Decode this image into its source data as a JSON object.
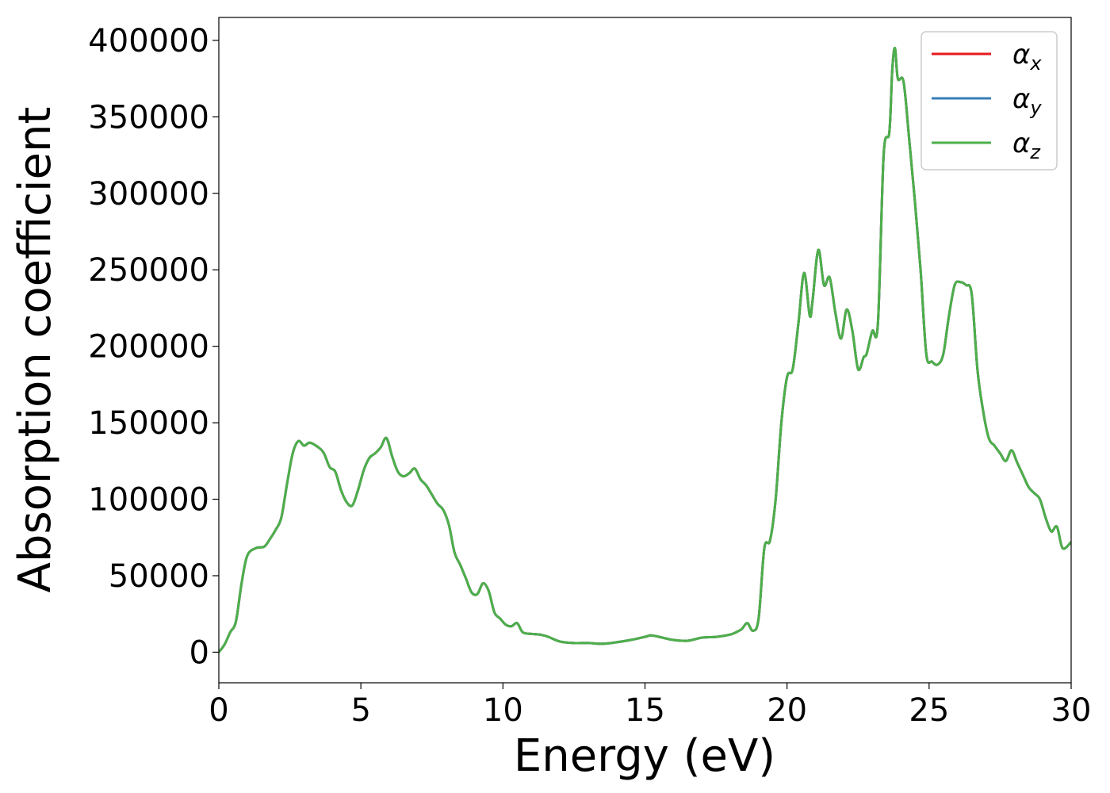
{
  "chart_data": {
    "type": "line",
    "xlabel": "Energy (eV)",
    "ylabel": "Absorption coefficient",
    "xlim": [
      0,
      30
    ],
    "ylim": [
      -20000,
      415000
    ],
    "xticks": [
      "0",
      "5",
      "10",
      "15",
      "20",
      "25",
      "30"
    ],
    "yticks": [
      "0",
      "50000",
      "100000",
      "150000",
      "200000",
      "250000",
      "300000",
      "350000",
      "400000"
    ],
    "grid": false,
    "legend_position": "top-right",
    "x": [
      0,
      0.2,
      0.4,
      0.6,
      0.8,
      1.0,
      1.3,
      1.6,
      1.8,
      2.0,
      2.2,
      2.4,
      2.6,
      2.8,
      3.0,
      3.2,
      3.5,
      3.7,
      3.9,
      4.1,
      4.3,
      4.5,
      4.7,
      4.9,
      5.1,
      5.3,
      5.5,
      5.7,
      5.9,
      6.1,
      6.3,
      6.5,
      6.7,
      6.9,
      7.1,
      7.3,
      7.5,
      7.7,
      7.9,
      8.1,
      8.3,
      8.5,
      8.7,
      8.9,
      9.1,
      9.3,
      9.5,
      9.7,
      9.9,
      10.1,
      10.3,
      10.5,
      10.7,
      11.0,
      11.3,
      11.6,
      12.0,
      12.5,
      13.0,
      13.5,
      14.0,
      14.5,
      15.0,
      15.2,
      15.5,
      16.0,
      16.5,
      17.0,
      17.5,
      18.0,
      18.2,
      18.4,
      18.6,
      18.8,
      19.0,
      19.2,
      19.4,
      19.6,
      19.8,
      20.0,
      20.2,
      20.4,
      20.6,
      20.8,
      20.9,
      21.1,
      21.3,
      21.5,
      21.7,
      21.9,
      22.1,
      22.3,
      22.5,
      22.7,
      22.8,
      23.0,
      23.2,
      23.4,
      23.6,
      23.7,
      23.8,
      23.9,
      24.1,
      24.3,
      24.5,
      24.7,
      24.9,
      25.1,
      25.3,
      25.5,
      25.7,
      25.9,
      26.1,
      26.3,
      26.5,
      26.7,
      26.9,
      27.1,
      27.3,
      27.5,
      27.7,
      27.9,
      28.1,
      28.3,
      28.5,
      28.7,
      28.9,
      29.1,
      29.3,
      29.5,
      29.7,
      30.0
    ],
    "series": [
      {
        "name": "α",
        "sub": "x",
        "color": "#e41a1c",
        "values": [
          0,
          5000,
          13000,
          20000,
          45000,
          63000,
          68000,
          69000,
          74000,
          80000,
          88000,
          110000,
          130000,
          138000,
          135000,
          137000,
          134000,
          130000,
          121000,
          118000,
          106000,
          98000,
          96000,
          106000,
          119000,
          127000,
          130000,
          134000,
          140000,
          128000,
          118000,
          115000,
          117000,
          120000,
          113000,
          109000,
          103000,
          97000,
          93000,
          83000,
          65000,
          57000,
          48000,
          39000,
          38000,
          45000,
          40000,
          26000,
          22000,
          18000,
          17000,
          19000,
          13000,
          12000,
          11500,
          10000,
          7000,
          6000,
          6000,
          5500,
          6500,
          8000,
          10000,
          11000,
          10000,
          8000,
          7500,
          9500,
          10000,
          11500,
          13000,
          15000,
          19000,
          14000,
          22000,
          68000,
          73000,
          100000,
          150000,
          180000,
          185000,
          215000,
          248000,
          220000,
          230000,
          263000,
          240000,
          245000,
          222000,
          205000,
          224000,
          210000,
          185000,
          193000,
          195000,
          210000,
          215000,
          325000,
          340000,
          380000,
          395000,
          375000,
          373000,
          335000,
          295000,
          250000,
          195000,
          190000,
          188000,
          195000,
          220000,
          240000,
          242000,
          240000,
          234000,
          185000,
          158000,
          140000,
          135000,
          130000,
          125000,
          132000,
          124000,
          116000,
          108000,
          104000,
          100000,
          88000,
          79000,
          82000,
          68000,
          72000
        ]
      },
      {
        "name": "α",
        "sub": "y",
        "color": "#377eb8",
        "values": [
          0,
          5000,
          13000,
          20000,
          45000,
          63000,
          68000,
          69000,
          74000,
          80000,
          88000,
          110000,
          130000,
          138000,
          135000,
          137000,
          134000,
          130000,
          121000,
          118000,
          106000,
          98000,
          96000,
          106000,
          119000,
          127000,
          130000,
          134000,
          140000,
          128000,
          118000,
          115000,
          117000,
          120000,
          113000,
          109000,
          103000,
          97000,
          93000,
          83000,
          65000,
          57000,
          48000,
          39000,
          38000,
          45000,
          40000,
          26000,
          22000,
          18000,
          17000,
          19000,
          13000,
          12000,
          11500,
          10000,
          7000,
          6000,
          6000,
          5500,
          6500,
          8000,
          10000,
          11000,
          10000,
          8000,
          7500,
          9500,
          10000,
          11500,
          13000,
          15000,
          19000,
          14000,
          22000,
          68000,
          73000,
          100000,
          150000,
          180000,
          185000,
          215000,
          248000,
          220000,
          230000,
          263000,
          240000,
          245000,
          222000,
          205000,
          224000,
          210000,
          185000,
          193000,
          195000,
          210000,
          215000,
          325000,
          340000,
          380000,
          395000,
          375000,
          373000,
          335000,
          295000,
          250000,
          195000,
          190000,
          188000,
          195000,
          220000,
          240000,
          242000,
          240000,
          234000,
          185000,
          158000,
          140000,
          135000,
          130000,
          125000,
          132000,
          124000,
          116000,
          108000,
          104000,
          100000,
          88000,
          79000,
          82000,
          68000,
          72000
        ]
      },
      {
        "name": "α",
        "sub": "z",
        "color": "#4daf4a",
        "values": [
          0,
          5000,
          13000,
          20000,
          45000,
          63000,
          68000,
          69000,
          74000,
          80000,
          88000,
          110000,
          130000,
          138000,
          135000,
          137000,
          134000,
          130000,
          121000,
          118000,
          106000,
          98000,
          96000,
          106000,
          119000,
          127000,
          130000,
          134000,
          140000,
          128000,
          118000,
          115000,
          117000,
          120000,
          113000,
          109000,
          103000,
          97000,
          93000,
          83000,
          65000,
          57000,
          48000,
          39000,
          38000,
          45000,
          40000,
          26000,
          22000,
          18000,
          17000,
          19000,
          13000,
          12000,
          11500,
          10000,
          7000,
          6000,
          6000,
          5500,
          6500,
          8000,
          10000,
          11000,
          10000,
          8000,
          7500,
          9500,
          10000,
          11500,
          13000,
          15000,
          19000,
          14000,
          22000,
          68000,
          73000,
          100000,
          150000,
          180000,
          185000,
          215000,
          248000,
          220000,
          230000,
          263000,
          240000,
          245000,
          222000,
          205000,
          224000,
          210000,
          185000,
          193000,
          195000,
          210000,
          215000,
          325000,
          340000,
          380000,
          395000,
          375000,
          373000,
          335000,
          295000,
          250000,
          195000,
          190000,
          188000,
          195000,
          220000,
          240000,
          242000,
          240000,
          234000,
          185000,
          158000,
          140000,
          135000,
          130000,
          125000,
          132000,
          124000,
          116000,
          108000,
          104000,
          100000,
          88000,
          79000,
          82000,
          68000,
          72000
        ]
      }
    ]
  }
}
